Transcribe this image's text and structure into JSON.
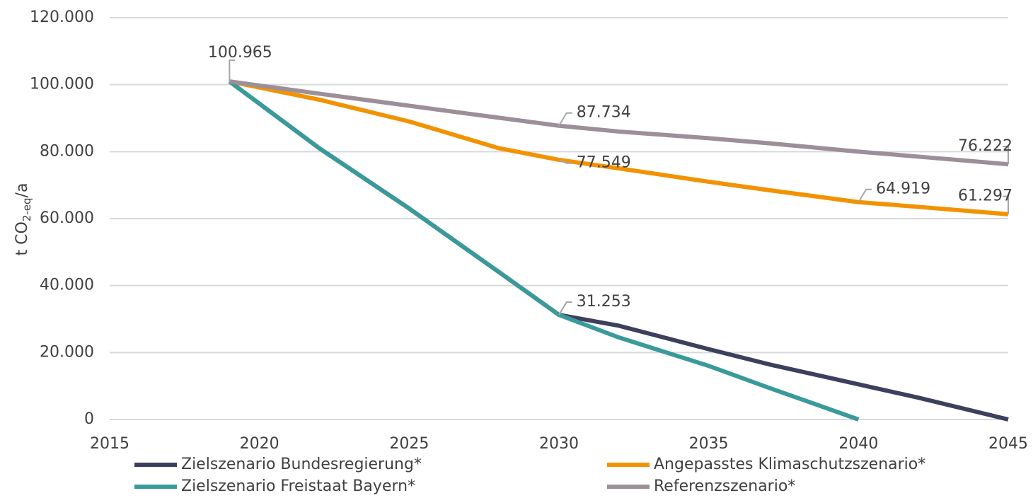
{
  "chart_data": {
    "type": "line",
    "y_label": {
      "main": "t CO",
      "sub": "2-eq",
      "suffix": "/a"
    },
    "x": [
      2019,
      2022,
      2025,
      2028,
      2030,
      2032,
      2035,
      2037,
      2040,
      2042,
      2045
    ],
    "xlim": [
      2015,
      2045
    ],
    "xticks": [
      2015,
      2020,
      2025,
      2030,
      2035,
      2040,
      2045
    ],
    "ylim": [
      0,
      120000
    ],
    "yticks": [
      0,
      {
        "value": 20000,
        "label": "20.000"
      },
      {
        "value": 40000,
        "label": "40.000"
      },
      {
        "value": 60000,
        "label": "60.000"
      },
      {
        "value": 80000,
        "label": "80.000"
      },
      {
        "value": 100000,
        "label": "100.000"
      },
      {
        "value": 120000,
        "label": "120.000"
      }
    ],
    "grid": true,
    "legend": "bottom",
    "series": [
      {
        "name": "Zielszenario Bundesregierung*",
        "color": "#3d3f5e",
        "values": [
          100965,
          81000,
          63000,
          44000,
          31253,
          28000,
          21000,
          16500,
          10500,
          6500,
          0
        ]
      },
      {
        "name": "Angepasstes Klimaschutzszenario*",
        "color": "#f39200",
        "values": [
          100965,
          95500,
          89000,
          81000,
          77549,
          75000,
          71000,
          68500,
          64919,
          63500,
          61297
        ],
        "value_labels": [
          null,
          null,
          null,
          null,
          "77.549",
          null,
          null,
          null,
          "64.919",
          null,
          "61.297"
        ]
      },
      {
        "name": "Zielszenario Freistaat Bayern*",
        "color": "#3a9a9a",
        "values": [
          100965,
          81000,
          63000,
          44000,
          31253,
          24500,
          16000,
          9500,
          0,
          null,
          null
        ],
        "value_labels": [
          null,
          null,
          null,
          null,
          "31.253",
          null,
          null,
          null,
          null,
          null,
          null
        ]
      },
      {
        "name": "Referenzszenario*",
        "color": "#9c8f98",
        "values": [
          100965,
          97300,
          93700,
          90100,
          87734,
          86000,
          84000,
          82500,
          80000,
          78500,
          76222
        ],
        "value_labels": [
          "100.965",
          null,
          null,
          null,
          "87.734",
          null,
          null,
          null,
          null,
          null,
          "76.222"
        ]
      }
    ]
  }
}
